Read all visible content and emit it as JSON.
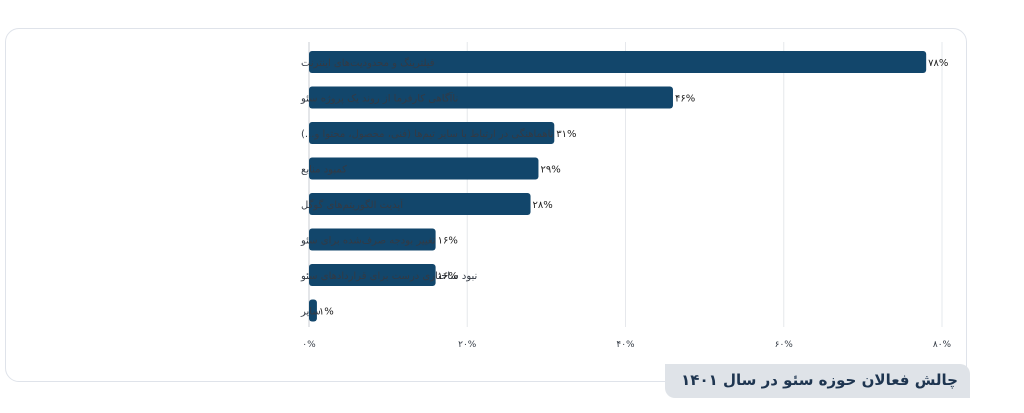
{
  "chart_data": {
    "type": "bar",
    "orientation": "horizontal",
    "title": "چالش فعالان حوزه سئو در سال ۱۴۰۱",
    "categories": [
      "فیلترینگ و محدودیت‌های اینترنت",
      "ناآگاهی کارفرما از روند یک پروژه سئو",
      "ناهماهنگی در ارتباط با سایر تیم‌ها (فنی، محصول، محتوا و...)",
      "کمبود منابع",
      "آپدیت الگوریتم‌های گوگل",
      "تغییر بودجه صرف‌شده برای سئو",
      "نبود ساختاری درست برای قراردادهای سئو",
      "سایر"
    ],
    "values": [
      78,
      46,
      31,
      29,
      28,
      16,
      16,
      1
    ],
    "value_labels": [
      "۷۸%",
      "۴۶%",
      "۳۱%",
      "۲۹%",
      "۲۸%",
      "۱۶%",
      "۱۶%",
      "۱%"
    ],
    "x_ticks": [
      0,
      20,
      40,
      60,
      80
    ],
    "x_tick_labels": [
      "۰%",
      "۲۰%",
      "۴۰%",
      "۶۰%",
      "۸۰%"
    ],
    "xlim": [
      0,
      80
    ],
    "grid": true,
    "bar_color": "#12466b",
    "xlabel": "",
    "ylabel": ""
  }
}
